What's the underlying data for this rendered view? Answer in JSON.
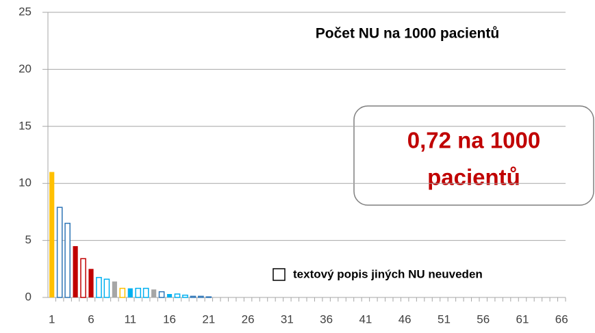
{
  "chart_data": {
    "type": "bar",
    "title": "Počet NU na 1000 pacientů",
    "annotation": [
      "0,72 na 1000",
      "pacientů"
    ],
    "legend": {
      "label": "textový popis jiných NU neuveden",
      "filled": false,
      "color": "#000000"
    },
    "categories": [
      "1",
      null,
      null,
      null,
      null,
      "6",
      null,
      null,
      null,
      null,
      "11",
      null,
      null,
      null,
      null,
      "16",
      null,
      null,
      null,
      null,
      "21",
      null,
      null,
      null,
      null,
      "26",
      null,
      null,
      null,
      null,
      "31",
      null,
      null,
      null,
      null,
      "36",
      null,
      null,
      null,
      null,
      "41",
      null,
      null,
      null,
      null,
      "46",
      null,
      null,
      null,
      null,
      "51",
      null,
      null,
      null,
      null,
      "56",
      null,
      null,
      null,
      null,
      "61",
      null,
      null,
      null,
      null,
      "66"
    ],
    "values": [
      11,
      7.9,
      6.5,
      4.5,
      3.4,
      2.5,
      1.75,
      1.6,
      1.4,
      0.8,
      0.8,
      0.8,
      0.8,
      0.7,
      0.5,
      0.3,
      0.3,
      0.2,
      0.1,
      0.1,
      0.05,
      0,
      0,
      0,
      0,
      0,
      0,
      0,
      0,
      0,
      0,
      0,
      0,
      0,
      0,
      0,
      0,
      0,
      0,
      0,
      0,
      0,
      0,
      0,
      0,
      0,
      0,
      0,
      0,
      0,
      0,
      0,
      0,
      0,
      0,
      0,
      0,
      0,
      0,
      0,
      0,
      0,
      0,
      0,
      0,
      0
    ],
    "colors": [
      "#ffc000",
      "#2e75b6",
      "#2e75b6",
      "#c00000",
      "#c00000",
      "#c00000",
      "#00b0f0",
      "#00b0f0",
      "#a6a6a6",
      "#ffc000",
      "#00b0f0",
      "#00b0f0",
      "#00b0f0",
      "#a6a6a6",
      "#2e75b6",
      "#00b0f0",
      "#00b0f0",
      "#00b0f0",
      "#2e75b6",
      "#2e75b6",
      "#2e75b6",
      "#2e75b6",
      "#2e75b6",
      "#2e75b6",
      "#2e75b6",
      "#2e75b6",
      "#2e75b6",
      "#2e75b6",
      "#2e75b6",
      "#2e75b6",
      "#2e75b6",
      "#2e75b6",
      "#2e75b6",
      "#2e75b6",
      "#2e75b6",
      "#2e75b6",
      "#2e75b6",
      "#2e75b6",
      "#2e75b6",
      "#2e75b6",
      "#2e75b6",
      "#2e75b6",
      "#2e75b6",
      "#2e75b6",
      "#2e75b6",
      "#2e75b6",
      "#2e75b6",
      "#2e75b6",
      "#2e75b6",
      "#2e75b6",
      "#2e75b6",
      "#2e75b6",
      "#2e75b6",
      "#2e75b6",
      "#2e75b6",
      "#2e75b6",
      "#2e75b6",
      "#2e75b6",
      "#2e75b6",
      "#2e75b6",
      "#2e75b6",
      "#2e75b6",
      "#2e75b6",
      "#2e75b6",
      "#2e75b6",
      "#2e75b6"
    ],
    "filled": [
      true,
      false,
      false,
      true,
      false,
      true,
      false,
      false,
      true,
      false,
      true,
      false,
      false,
      true,
      false,
      true,
      false,
      false,
      false,
      false,
      false,
      false,
      false,
      false,
      false,
      false,
      false,
      false,
      false,
      false,
      false,
      false,
      false,
      false,
      false,
      false,
      false,
      false,
      false,
      false,
      false,
      false,
      false,
      false,
      false,
      false,
      false,
      false,
      false,
      false,
      false,
      false,
      false,
      false,
      false,
      false,
      false,
      false,
      false,
      false,
      false,
      false,
      false,
      false,
      false,
      false
    ],
    "ylim": [
      0,
      25
    ],
    "yticks": [
      0,
      5,
      10,
      15,
      20,
      25
    ],
    "grid": true
  }
}
